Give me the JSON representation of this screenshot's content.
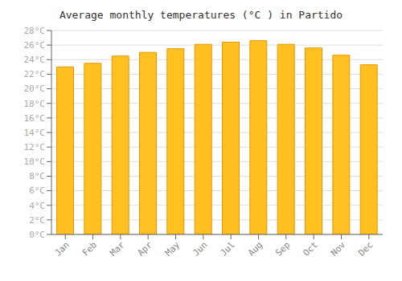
{
  "chart_data": {
    "type": "bar",
    "title": "Average monthly temperatures (°C ) in Partido",
    "categories": [
      "Jan",
      "Feb",
      "Mar",
      "Apr",
      "May",
      "Jun",
      "Jul",
      "Aug",
      "Sep",
      "Oct",
      "Nov",
      "Dec"
    ],
    "values": [
      23.0,
      23.5,
      24.5,
      25.0,
      25.5,
      26.1,
      26.4,
      26.6,
      26.1,
      25.6,
      24.6,
      23.3
    ],
    "color": "#FFC020",
    "ylim": [
      0,
      28
    ],
    "yticks": [
      {
        "value": 0,
        "label": "0°C"
      },
      {
        "value": 2,
        "label": "2°C"
      },
      {
        "value": 4,
        "label": "4°C"
      },
      {
        "value": 6,
        "label": "6°C"
      },
      {
        "value": 8,
        "label": "8°C"
      },
      {
        "value": 10,
        "label": "10°C"
      },
      {
        "value": 12,
        "label": "12°C"
      },
      {
        "value": 14,
        "label": "14°C"
      },
      {
        "value": 16,
        "label": "16°C"
      },
      {
        "value": 18,
        "label": "18°C"
      },
      {
        "value": 20,
        "label": "20°C"
      },
      {
        "value": 22,
        "label": "22°C"
      },
      {
        "value": 24,
        "label": "24°C"
      },
      {
        "value": 26,
        "label": "26°C"
      },
      {
        "value": 28,
        "label": "28°C"
      }
    ],
    "grid": true
  }
}
